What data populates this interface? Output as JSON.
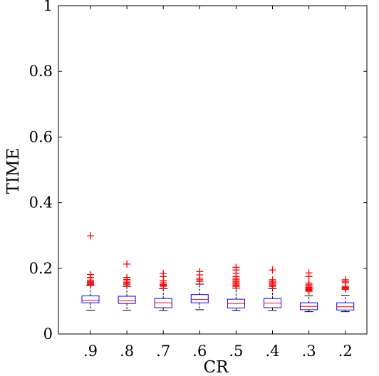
{
  "chart_data": {
    "type": "box",
    "title": "",
    "xlabel": "CR",
    "ylabel": "TIME",
    "categories": [
      ".9",
      ".8",
      ".7",
      ".6",
      ".5",
      ".4",
      ".3",
      ".2"
    ],
    "ylim": [
      0,
      1
    ],
    "yticks": [
      "0",
      "0.2",
      "0.4",
      "0.6",
      "0.8",
      "1"
    ],
    "grid": false,
    "colors": {
      "box": "#0000ff",
      "median": "#ff0000",
      "whisker": "#000000",
      "outlier": "#ff0000"
    },
    "boxes": [
      {
        "category": ".9",
        "whisker_low": 0.072,
        "q1": 0.095,
        "median": 0.103,
        "q3": 0.116,
        "whisker_high": 0.148,
        "outliers": [
          0.299,
          0.181,
          0.172,
          0.164,
          0.16,
          0.157,
          0.154,
          0.151
        ]
      },
      {
        "category": ".8",
        "whisker_low": 0.072,
        "q1": 0.093,
        "median": 0.101,
        "q3": 0.115,
        "whisker_high": 0.145,
        "outliers": [
          0.213,
          0.172,
          0.166,
          0.161,
          0.157,
          0.153,
          0.15
        ]
      },
      {
        "category": ".7",
        "whisker_low": 0.071,
        "q1": 0.08,
        "median": 0.095,
        "q3": 0.108,
        "whisker_high": 0.138,
        "outliers": [
          0.185,
          0.175,
          0.162,
          0.156,
          0.151,
          0.148,
          0.145
        ]
      },
      {
        "category": ".6",
        "whisker_low": 0.074,
        "q1": 0.095,
        "median": 0.105,
        "q3": 0.12,
        "whisker_high": 0.152,
        "outliers": [
          0.19,
          0.18,
          0.17,
          0.165,
          0.16
        ]
      },
      {
        "category": ".5",
        "whisker_low": 0.071,
        "q1": 0.079,
        "median": 0.093,
        "q3": 0.106,
        "whisker_high": 0.14,
        "outliers": [
          0.203,
          0.195,
          0.185,
          0.175,
          0.17,
          0.165,
          0.16,
          0.156,
          0.152,
          0.148,
          0.145
        ]
      },
      {
        "category": ".4",
        "whisker_low": 0.071,
        "q1": 0.08,
        "median": 0.094,
        "q3": 0.108,
        "whisker_high": 0.138,
        "outliers": [
          0.195,
          0.165,
          0.16,
          0.156,
          0.152,
          0.148,
          0.145
        ]
      },
      {
        "category": ".3",
        "whisker_low": 0.068,
        "q1": 0.074,
        "median": 0.084,
        "q3": 0.095,
        "whisker_high": 0.116,
        "outliers": [
          0.186,
          0.175,
          0.155,
          0.15,
          0.146,
          0.142,
          0.139,
          0.136,
          0.133,
          0.13
        ]
      },
      {
        "category": ".2",
        "whisker_low": 0.068,
        "q1": 0.073,
        "median": 0.083,
        "q3": 0.095,
        "whisker_high": 0.118,
        "outliers": [
          0.165,
          0.16,
          0.156,
          0.145,
          0.142,
          0.139,
          0.136
        ]
      }
    ]
  }
}
